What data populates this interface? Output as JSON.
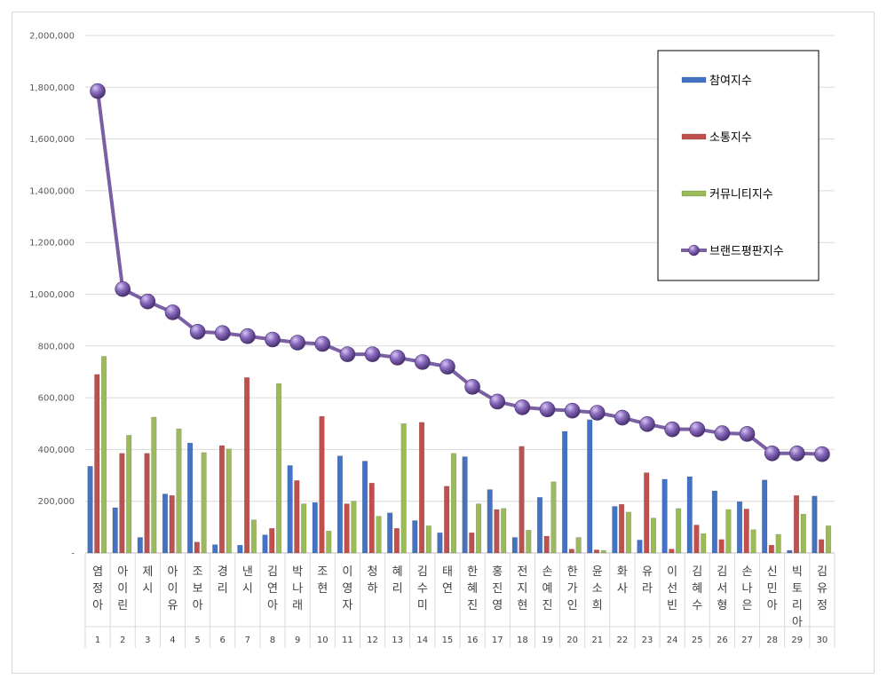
{
  "chart_data": {
    "type": "bar",
    "title": "",
    "xlabel": "",
    "ylabel": "",
    "ylim": [
      0,
      2000000
    ],
    "yticks": [
      "-",
      "200,000",
      "400,000",
      "600,000",
      "800,000",
      "1,000,000",
      "1,200,000",
      "1,400,000",
      "1,600,000",
      "1,800,000",
      "2,000,000"
    ],
    "grid": true,
    "legend_position": "top-right",
    "categories": [
      "염정아",
      "아이린",
      "제시",
      "아이유",
      "조보아",
      "경리",
      "낸시",
      "김연아",
      "박나래",
      "조현",
      "이영자",
      "청하",
      "혜리",
      "김수미",
      "태연",
      "한혜진",
      "홍진영",
      "전지현",
      "손예진",
      "한가인",
      "윤소희",
      "화사",
      "유라",
      "이선빈",
      "김혜수",
      "김서형",
      "손나은",
      "신민아",
      "빅토리아",
      "김유정"
    ],
    "ranks": [
      "1",
      "2",
      "3",
      "4",
      "5",
      "6",
      "7",
      "8",
      "9",
      "10",
      "11",
      "12",
      "13",
      "14",
      "15",
      "16",
      "17",
      "18",
      "19",
      "20",
      "21",
      "22",
      "23",
      "24",
      "25",
      "26",
      "27",
      "28",
      "29",
      "30"
    ],
    "series": [
      {
        "name": "참여지수",
        "kind": "bar",
        "color": "#4472c4",
        "values": [
          335000,
          175000,
          60000,
          228000,
          425000,
          32000,
          30000,
          70000,
          338000,
          195000,
          375000,
          355000,
          155000,
          125000,
          78000,
          372000,
          245000,
          60000,
          215000,
          470000,
          515000,
          180000,
          50000,
          285000,
          295000,
          240000,
          198000,
          282000,
          10000,
          220000
        ]
      },
      {
        "name": "소통지수",
        "kind": "bar",
        "color": "#c0504d",
        "values": [
          690000,
          385000,
          385000,
          222000,
          42000,
          415000,
          678000,
          95000,
          280000,
          528000,
          190000,
          270000,
          95000,
          505000,
          258000,
          78000,
          168000,
          412000,
          65000,
          15000,
          12000,
          188000,
          310000,
          15000,
          108000,
          52000,
          170000,
          30000,
          222000,
          52000
        ]
      },
      {
        "name": "커뮤니티지수",
        "kind": "bar",
        "color": "#9bbb59",
        "values": [
          760000,
          455000,
          525000,
          480000,
          388000,
          402000,
          128000,
          655000,
          190000,
          85000,
          200000,
          142000,
          500000,
          105000,
          385000,
          190000,
          172000,
          88000,
          275000,
          60000,
          10000,
          158000,
          135000,
          172000,
          75000,
          168000,
          90000,
          72000,
          150000,
          105000
        ]
      },
      {
        "name": "브랜드평판지수",
        "kind": "line",
        "color": "#7b5fa3",
        "values": [
          1785000,
          1020000,
          972000,
          930000,
          855000,
          850000,
          838000,
          825000,
          813000,
          808000,
          768000,
          768000,
          755000,
          738000,
          720000,
          642000,
          585000,
          563000,
          555000,
          550000,
          542000,
          523000,
          498000,
          478000,
          478000,
          463000,
          460000,
          385000,
          385000,
          382000
        ]
      }
    ]
  }
}
